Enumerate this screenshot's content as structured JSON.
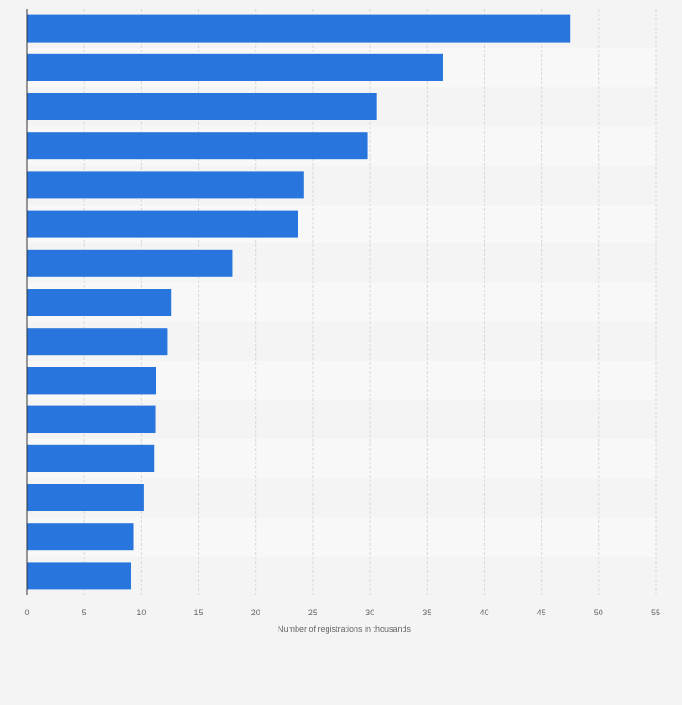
{
  "chart_data": {
    "type": "bar",
    "orientation": "horizontal",
    "values": [
      47.5,
      36.4,
      30.6,
      29.8,
      24.2,
      23.7,
      18.0,
      12.6,
      12.3,
      11.3,
      11.2,
      11.1,
      10.2,
      9.3,
      9.1
    ],
    "xlabel": "Number of registrations in thousands",
    "xlim": [
      0,
      55
    ],
    "xticks": [
      "0",
      "5",
      "10",
      "15",
      "20",
      "25",
      "30",
      "35",
      "40",
      "45",
      "50",
      "55"
    ],
    "grid": true,
    "legend": "none",
    "bar_color": "#2876dd",
    "band_colors": [
      "#f4f4f4",
      "#f8f8f8"
    ],
    "grid_color": "#d8d8d8",
    "axis_color": "#333333"
  }
}
